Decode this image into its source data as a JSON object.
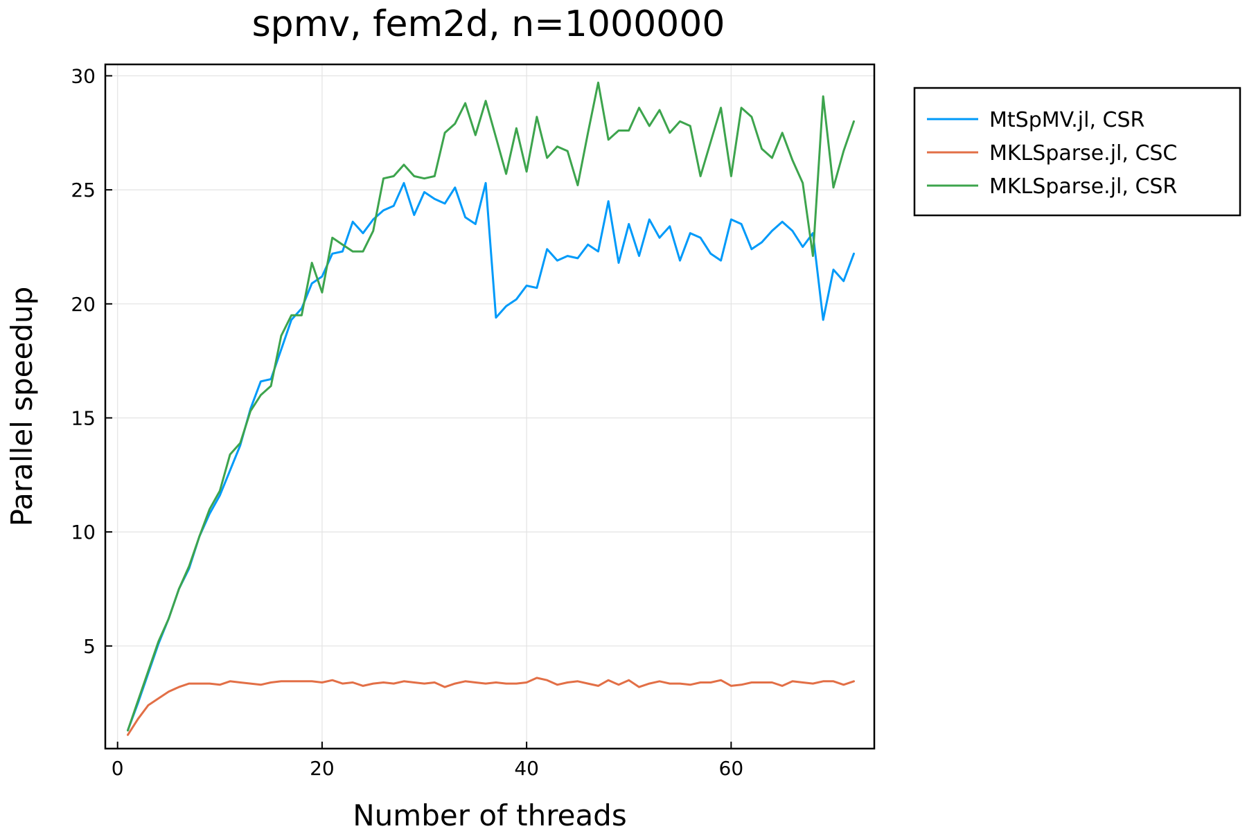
{
  "chart_data": {
    "type": "line",
    "title": "spmv, fem2d, n=1000000",
    "xlabel": "Number of threads",
    "ylabel": "Parallel speedup",
    "xlim": [
      -1.2,
      74.0
    ],
    "ylim": [
      0.5,
      30.5
    ],
    "xticks": [
      0,
      20,
      40,
      60
    ],
    "yticks": [
      5,
      10,
      15,
      20,
      25,
      30
    ],
    "grid": true,
    "legend_position": "outside-top-right",
    "x": [
      1,
      2,
      3,
      4,
      5,
      6,
      7,
      8,
      9,
      10,
      11,
      12,
      13,
      14,
      15,
      16,
      17,
      18,
      19,
      20,
      21,
      22,
      23,
      24,
      25,
      26,
      27,
      28,
      29,
      30,
      31,
      32,
      33,
      34,
      35,
      36,
      37,
      38,
      39,
      40,
      41,
      42,
      43,
      44,
      45,
      46,
      47,
      48,
      49,
      50,
      51,
      52,
      53,
      54,
      55,
      56,
      57,
      58,
      59,
      60,
      61,
      62,
      63,
      64,
      65,
      66,
      67,
      68,
      69,
      70,
      71,
      72
    ],
    "series": [
      {
        "name": "MtSpMV.jl, CSR",
        "color": "#009af9",
        "values": [
          1.3,
          2.5,
          3.8,
          5.1,
          6.2,
          7.5,
          8.4,
          9.8,
          10.8,
          11.6,
          12.7,
          13.8,
          15.4,
          16.6,
          16.7,
          18.0,
          19.3,
          19.8,
          20.9,
          21.2,
          22.2,
          22.3,
          23.6,
          23.1,
          23.7,
          24.1,
          24.3,
          25.3,
          23.9,
          24.9,
          24.6,
          24.4,
          25.1,
          23.8,
          23.5,
          25.3,
          19.4,
          19.9,
          20.2,
          20.8,
          20.7,
          22.4,
          21.9,
          22.1,
          22.0,
          22.6,
          22.3,
          24.5,
          21.8,
          23.5,
          22.1,
          23.7,
          22.9,
          23.4,
          21.9,
          23.1,
          22.9,
          22.2,
          21.9,
          23.7,
          23.5,
          22.4,
          22.7,
          23.2,
          23.6,
          23.2,
          22.5,
          23.1,
          19.3,
          21.5,
          21.0,
          22.2
        ]
      },
      {
        "name": "MKLSparse.jl, CSC",
        "color": "#e26f46",
        "values": [
          1.1,
          1.8,
          2.4,
          2.7,
          3.0,
          3.2,
          3.35,
          3.35,
          3.35,
          3.3,
          3.45,
          3.4,
          3.35,
          3.3,
          3.4,
          3.45,
          3.45,
          3.45,
          3.45,
          3.4,
          3.5,
          3.35,
          3.4,
          3.25,
          3.35,
          3.4,
          3.35,
          3.45,
          3.4,
          3.35,
          3.4,
          3.2,
          3.35,
          3.45,
          3.4,
          3.35,
          3.4,
          3.35,
          3.35,
          3.4,
          3.6,
          3.5,
          3.3,
          3.4,
          3.45,
          3.35,
          3.25,
          3.5,
          3.3,
          3.5,
          3.2,
          3.35,
          3.45,
          3.35,
          3.35,
          3.3,
          3.4,
          3.4,
          3.5,
          3.25,
          3.3,
          3.4,
          3.4,
          3.4,
          3.25,
          3.45,
          3.4,
          3.35,
          3.45,
          3.45,
          3.3,
          3.45
        ]
      },
      {
        "name": "MKLSparse.jl, CSR",
        "color": "#3da44d",
        "values": [
          1.3,
          2.6,
          3.9,
          5.2,
          6.2,
          7.5,
          8.5,
          9.8,
          11.0,
          11.8,
          13.4,
          13.9,
          15.3,
          16.0,
          16.4,
          18.6,
          19.5,
          19.5,
          21.8,
          20.5,
          22.9,
          22.6,
          22.3,
          22.3,
          23.2,
          25.5,
          25.6,
          26.1,
          25.6,
          25.5,
          25.6,
          27.5,
          27.9,
          28.8,
          27.4,
          28.9,
          27.3,
          25.7,
          27.7,
          25.8,
          28.2,
          26.4,
          26.9,
          26.7,
          25.2,
          27.5,
          29.7,
          27.2,
          27.6,
          27.6,
          28.6,
          27.8,
          28.5,
          27.5,
          28.0,
          27.8,
          25.6,
          27.1,
          28.6,
          25.6,
          28.6,
          28.2,
          26.8,
          26.4,
          27.5,
          26.3,
          25.3,
          22.1,
          29.1,
          25.1,
          26.7,
          28.0
        ]
      }
    ]
  }
}
